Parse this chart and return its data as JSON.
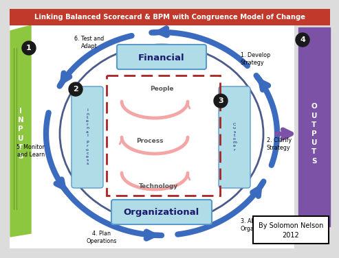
{
  "title": "Linking Balanced Scorecard & BPM with Congruence Model of Change",
  "title_bg": "#c0392b",
  "title_color": "#ffffff",
  "bg_color": "#dcdcdc",
  "inputs_text": "I\nN\nP\nU\nT\nS",
  "outputs_text": "O\nU\nT\nP\nU\nT\nS",
  "inputs_color": "#8dc63f",
  "outputs_color": "#7b52a6",
  "inputs_num": "1",
  "outputs_num": "4",
  "circle_edge_color": "#4a5a8a",
  "financial_text": "Financial",
  "organizational_text": "Organizational",
  "internal_process_text": "I\nn\nt\ne\nr\nn\na\nl\n \nP\nr\no\nc\ne\ns\ns",
  "customer_text": "C\nu\ns\nt\no\nm\ne\nr",
  "people_text": "People",
  "process_text": "Process",
  "technology_text": "Technology",
  "box_color": "#b0dce8",
  "inner_arrow_color": "#f4a6a6",
  "dashed_box_color": "#aa2222",
  "step_labels": [
    "1. Develop\nStrategy",
    "2. Clarify\nStrategy",
    "3. Align the\nOrganization",
    "4. Plan\nOperations",
    "5. Monitor\nand Learn",
    "6. Test and\nAdapt"
  ],
  "author_text": "By Solomon Nelson\n2012",
  "arrow_color": "#3b6bbf"
}
